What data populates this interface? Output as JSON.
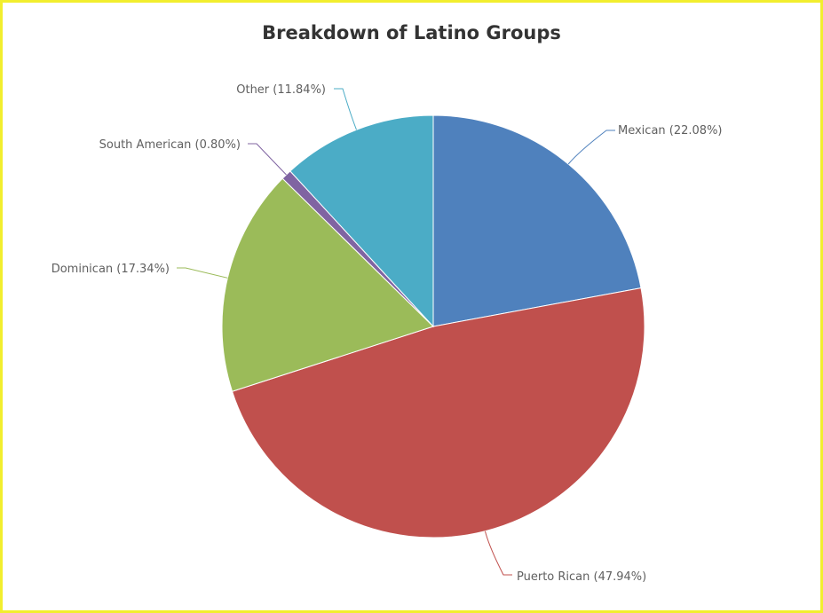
{
  "colors": {
    "frame_border": "#f2ee2e",
    "background": "#ffffff",
    "title_text": "#333333",
    "label_text": "#606060"
  },
  "chart_data": {
    "type": "pie",
    "title": "Breakdown of Latino Groups",
    "start_angle_deg": 0,
    "direction": "clockwise",
    "slices": [
      {
        "name": "Mexican",
        "value": 22.08,
        "label": "Mexican (22.08%)",
        "color": "#4f81bd",
        "label_side": "right"
      },
      {
        "name": "Puerto Rican",
        "value": 47.94,
        "label": "Puerto Rican (47.94%)",
        "color": "#c0504d",
        "label_side": "right"
      },
      {
        "name": "Dominican",
        "value": 17.34,
        "label": "Dominican (17.34%)",
        "color": "#9bbb59",
        "label_side": "left"
      },
      {
        "name": "South American",
        "value": 0.8,
        "label": "South American (0.80%)",
        "color": "#8064a2",
        "label_side": "left"
      },
      {
        "name": "Other",
        "value": 11.84,
        "label": "Other (11.84%)",
        "color": "#4bacc6",
        "label_side": "left"
      }
    ]
  }
}
